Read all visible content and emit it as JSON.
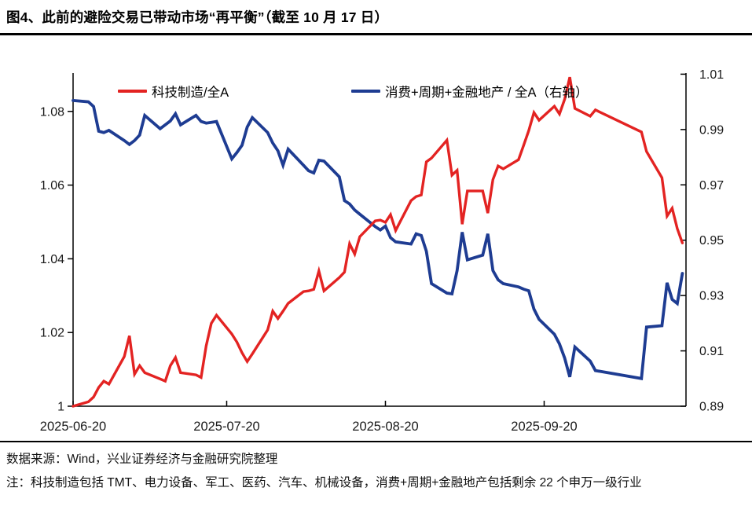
{
  "title": "图4、此前的避险交易已带动市场“再平衡”（截至 10 月 17 日）",
  "legend": [
    {
      "label": "科技制造/全A",
      "color": "#e32322"
    },
    {
      "label": "消费+周期+金融地产 / 全A（右轴）",
      "color": "#1e3c92"
    }
  ],
  "footer": {
    "source": "数据来源：Wind，兴业证券经济与金融研究院整理",
    "note": "注：科技制造包括 TMT、电力设备、军工、医药、汽车、机械设备，消费+周期+金融地产包括剩余 22 个申万一级行业"
  },
  "chart_data": {
    "type": "line",
    "title": "此前的避险交易已带动市场“再平衡”（截至 10 月 17 日）",
    "grid": false,
    "legend_position": "top",
    "x_start": "2025-06-20",
    "x_end": "2025-10-17",
    "xlim_days": [
      0,
      119.7
    ],
    "x_tick_days": [
      0,
      30,
      61,
      92
    ],
    "x_tick_labels": [
      "2025-06-20",
      "2025-07-20",
      "2025-08-20",
      "2025-09-20"
    ],
    "left_axis": {
      "ylim": [
        1.0,
        1.0904
      ],
      "tick_values": [
        1.0,
        1.02,
        1.04,
        1.06,
        1.08
      ],
      "tick_labels": [
        "1",
        "1.02",
        "1.04",
        "1.06",
        "1.08"
      ]
    },
    "right_axis": {
      "ylim": [
        0.89,
        1.0104
      ],
      "tick_values": [
        0.89,
        0.91,
        0.93,
        0.95,
        0.97,
        0.99,
        1.01
      ],
      "tick_labels": [
        "0.89",
        "0.91",
        "0.93",
        "0.95",
        "0.97",
        "0.99",
        "1.01"
      ]
    },
    "dates": [
      "2025-06-20",
      "2025-06-23",
      "2025-06-24",
      "2025-06-25",
      "2025-06-26",
      "2025-06-27",
      "2025-06-30",
      "2025-07-01",
      "2025-07-02",
      "2025-07-03",
      "2025-07-04",
      "2025-07-07",
      "2025-07-08",
      "2025-07-09",
      "2025-07-10",
      "2025-07-11",
      "2025-07-14",
      "2025-07-15",
      "2025-07-16",
      "2025-07-17",
      "2025-07-18",
      "2025-07-21",
      "2025-07-22",
      "2025-07-23",
      "2025-07-24",
      "2025-07-25",
      "2025-07-28",
      "2025-07-29",
      "2025-07-30",
      "2025-07-31",
      "2025-08-01",
      "2025-08-04",
      "2025-08-05",
      "2025-08-06",
      "2025-08-07",
      "2025-08-08",
      "2025-08-11",
      "2025-08-12",
      "2025-08-13",
      "2025-08-14",
      "2025-08-15",
      "2025-08-18",
      "2025-08-19",
      "2025-08-20",
      "2025-08-21",
      "2025-08-22",
      "2025-08-25",
      "2025-08-26",
      "2025-08-27",
      "2025-08-28",
      "2025-08-29",
      "2025-09-01",
      "2025-09-02",
      "2025-09-03",
      "2025-09-04",
      "2025-09-05",
      "2025-09-08",
      "2025-09-09",
      "2025-09-10",
      "2025-09-11",
      "2025-09-12",
      "2025-09-15",
      "2025-09-16",
      "2025-09-17",
      "2025-09-18",
      "2025-09-19",
      "2025-09-22",
      "2025-09-23",
      "2025-09-24",
      "2025-09-25",
      "2025-09-26",
      "2025-09-29",
      "2025-09-30",
      "2025-10-09",
      "2025-10-10",
      "2025-10-13",
      "2025-10-14",
      "2025-10-15",
      "2025-10-16",
      "2025-10-17"
    ],
    "series": [
      {
        "name": "科技制造/全A",
        "axis": "left",
        "color": "#e32322",
        "stroke_width": 3.4,
        "values": [
          1.0,
          1.0012,
          1.0025,
          1.0051,
          1.0068,
          1.006,
          1.0135,
          1.0191,
          1.0087,
          1.011,
          1.0091,
          1.0074,
          1.0068,
          1.011,
          1.0132,
          1.0091,
          1.0085,
          1.0078,
          1.0164,
          1.0225,
          1.0247,
          1.0196,
          1.0174,
          1.0145,
          1.0121,
          1.0142,
          1.0207,
          1.0258,
          1.0238,
          1.0258,
          1.0279,
          1.0311,
          1.0313,
          1.0317,
          1.0367,
          1.0313,
          1.0349,
          1.0364,
          1.0441,
          1.0413,
          1.046,
          1.0503,
          1.0505,
          1.0499,
          1.052,
          1.0477,
          1.0558,
          1.0569,
          1.0573,
          1.0663,
          1.0673,
          1.0722,
          1.0627,
          1.064,
          1.0494,
          1.0584,
          1.0584,
          1.0524,
          1.0615,
          1.0652,
          1.0644,
          1.0669,
          1.0708,
          1.0748,
          1.0797,
          1.0776,
          1.0814,
          1.0793,
          1.0833,
          1.0893,
          1.0808,
          1.0787,
          1.0804,
          1.0744,
          1.0691,
          1.062,
          1.0516,
          1.0537,
          1.0482,
          1.0443
        ]
      },
      {
        "name": "消费+周期+金融地产 / 全A（右轴）",
        "axis": "right",
        "color": "#1e3c92",
        "stroke_width": 3.8,
        "values": [
          1.0005,
          1.0,
          0.9983,
          0.9894,
          0.9889,
          0.9897,
          0.986,
          0.9846,
          0.986,
          0.988,
          0.9951,
          0.9903,
          0.9917,
          0.9931,
          0.9957,
          0.9917,
          0.9951,
          0.9929,
          0.9923,
          0.9926,
          0.9929,
          0.9794,
          0.9817,
          0.9843,
          0.9909,
          0.9943,
          0.9889,
          0.9851,
          0.9823,
          0.9771,
          0.9829,
          0.9771,
          0.9751,
          0.9743,
          0.9789,
          0.9786,
          0.9729,
          0.9643,
          0.9631,
          0.9609,
          0.9594,
          0.9549,
          0.9537,
          0.9551,
          0.9509,
          0.9494,
          0.9486,
          0.9523,
          0.9517,
          0.946,
          0.9343,
          0.9309,
          0.9306,
          0.939,
          0.9529,
          0.9429,
          0.9446,
          0.9523,
          0.939,
          0.9357,
          0.9343,
          0.9331,
          0.9323,
          0.9317,
          0.9251,
          0.9214,
          0.916,
          0.9125,
          0.9074,
          0.9006,
          0.9114,
          0.9063,
          0.9029,
          0.9,
          0.9186,
          0.9191,
          0.9346,
          0.9286,
          0.9271,
          0.938
        ]
      }
    ]
  }
}
